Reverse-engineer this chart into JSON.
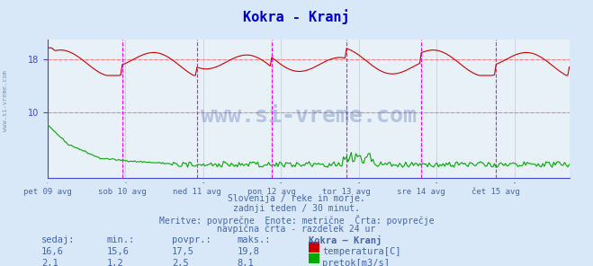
{
  "title": "Kokra - Kranj",
  "title_color": "#0000cc",
  "bg_color": "#d8e8f8",
  "plot_bg_color": "#e8f0f8",
  "figsize": [
    6.59,
    2.96
  ],
  "dpi": 100,
  "ylim": [
    0,
    21
  ],
  "yticks": [
    10,
    18
  ],
  "grid_color": "#c0c8d8",
  "x_labels": [
    "pet 09 avg",
    "sob 10 avg",
    "ned 11 avg",
    "pon 12 avg",
    "tor 13 avg",
    "sre 14 avg",
    "čet 15 avg"
  ],
  "x_positions": [
    0,
    48,
    96,
    144,
    192,
    240,
    288
  ],
  "total_points": 336,
  "vline_positions": [
    48,
    96,
    144,
    192,
    240,
    288
  ],
  "vline_color": "#ff00ff",
  "hline_color": "#ff8080",
  "hline_values": [
    10,
    18
  ],
  "temp_color": "#cc0000",
  "flow_color": "#00aa00",
  "axis_color": "#4444cc",
  "text_color": "#4466aa",
  "watermark_color": "#2244aa",
  "footer_lines": [
    "Slovenija / reke in morje.",
    "zadnji teden / 30 minut.",
    "Meritve: povprečne  Enote: metrične  Črta: povprečje",
    "navpična črta - razdelek 24 ur"
  ],
  "stats_header": [
    "sedaj:",
    "min.:",
    "povpr.:",
    "maks.:",
    "Kokra – Kranj"
  ],
  "stats_temp": [
    "16,6",
    "15,6",
    "17,5",
    "19,8",
    "temperatura[C]"
  ],
  "stats_flow": [
    "2,1",
    "1,2",
    "2,5",
    "8,1",
    "pretok[m3/s]"
  ],
  "legend_temp_color": "#cc0000",
  "legend_flow_color": "#00aa00",
  "sidebar_color": "#c8d8e8"
}
